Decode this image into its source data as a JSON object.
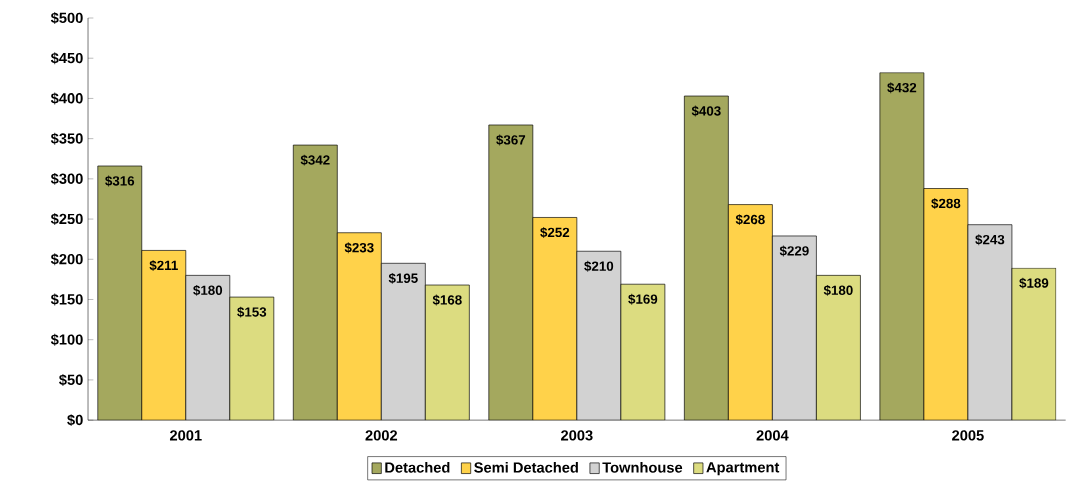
{
  "chart_data": {
    "type": "bar",
    "categories": [
      "2001",
      "2002",
      "2003",
      "2004",
      "2005"
    ],
    "series": [
      {
        "name": "Detached",
        "color": "#a4a85e",
        "values": [
          316,
          342,
          367,
          403,
          432
        ],
        "value_labels": [
          "$316",
          "$342",
          "$367",
          "$403",
          "$432"
        ]
      },
      {
        "name": "Semi Detached",
        "color": "#ffd24a",
        "values": [
          211,
          233,
          252,
          268,
          288
        ],
        "value_labels": [
          "$211",
          "$233",
          "$252",
          "$268",
          "$288"
        ]
      },
      {
        "name": "Townhouse",
        "color": "#d2d2d2",
        "values": [
          180,
          195,
          210,
          229,
          243
        ],
        "value_labels": [
          "$180",
          "$195",
          "$210",
          "$229",
          "$243"
        ]
      },
      {
        "name": "Apartment",
        "color": "#dcdc80",
        "values": [
          153,
          168,
          169,
          180,
          189
        ],
        "value_labels": [
          "$153",
          "$168",
          "$169",
          "$180",
          "$189"
        ]
      }
    ],
    "ylim": [
      0,
      500
    ],
    "yticks": [
      {
        "value": 0,
        "label": "$0"
      },
      {
        "value": 50,
        "label": "$50"
      },
      {
        "value": 100,
        "label": "$100"
      },
      {
        "value": 150,
        "label": "$150"
      },
      {
        "value": 200,
        "label": "$200"
      },
      {
        "value": 250,
        "label": "$250"
      },
      {
        "value": 300,
        "label": "$300"
      },
      {
        "value": 350,
        "label": "$350"
      },
      {
        "value": 400,
        "label": "$400"
      },
      {
        "value": 450,
        "label": "$450"
      },
      {
        "value": 500,
        "label": "$500"
      }
    ],
    "grid": false,
    "legend": "bottom"
  }
}
